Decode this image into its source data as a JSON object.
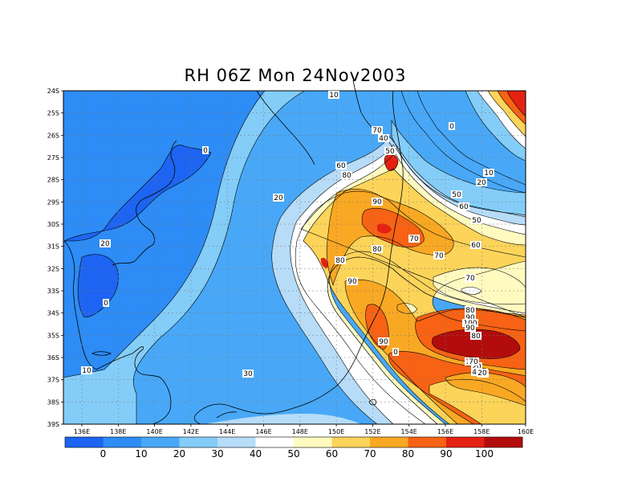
{
  "title": "RH 06Z Mon 24Nov2003",
  "lat_labels": [
    "24S",
    "25S",
    "26S",
    "27S",
    "28S",
    "29S",
    "30S",
    "31S",
    "32S",
    "33S",
    "34S",
    "35S",
    "36S",
    "37S",
    "38S",
    "39S"
  ],
  "lon_labels": [
    "136E",
    "138E",
    "140E",
    "142E",
    "144E",
    "146E",
    "148E",
    "150E",
    "152E",
    "154E",
    "156E",
    "158E",
    "160E"
  ],
  "colorbar": {
    "labels": [
      "0",
      "10",
      "20",
      "30",
      "40",
      "50",
      "60",
      "70",
      "80",
      "90",
      "100"
    ],
    "colors": [
      "#1d64f2",
      "#2d8cf5",
      "#48a8f7",
      "#84cdf8",
      "#b6dcf8",
      "#ffffff",
      "#fffbc0",
      "#fcd45a",
      "#f9a823",
      "#f76214",
      "#e52112",
      "#b30c0c"
    ]
  },
  "contour_labels": [
    "10",
    "0",
    "20",
    "0",
    "10",
    "0",
    "10",
    "20",
    "20",
    "30",
    "70",
    "40",
    "50",
    "60",
    "80",
    "90",
    "80",
    "70",
    "80",
    "70",
    "90",
    "90",
    "0",
    "10",
    "20",
    "30",
    "40",
    "50",
    "60",
    "50",
    "60",
    "70",
    "80",
    "90",
    "100",
    "90",
    "80",
    "70",
    "20"
  ]
}
